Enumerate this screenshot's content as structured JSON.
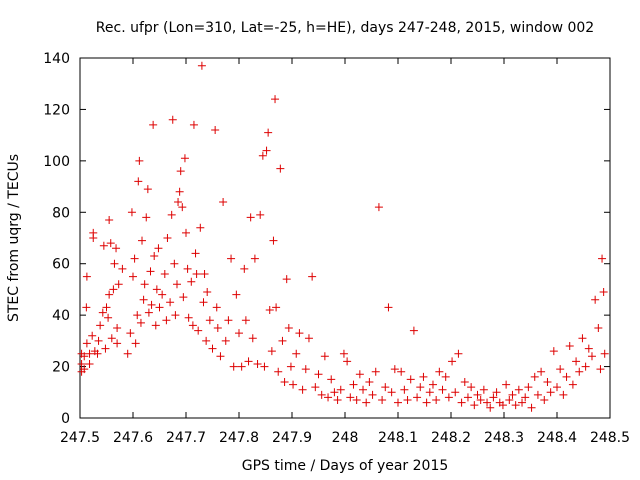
{
  "chart_data": {
    "type": "scatter",
    "title": "Rec. ufpr (Lon=310, Lat=-25, h=HE), days 247-248, 2015, window 002",
    "xlabel": "GPS time / Days of year 2015",
    "ylabel": "STEC from uqrg / TECUs",
    "xlim": [
      247.5,
      248.5
    ],
    "ylim": [
      0,
      140
    ],
    "x_ticks": [
      247.5,
      247.6,
      247.7,
      247.8,
      247.9,
      248.0,
      248.1,
      248.2,
      248.3,
      248.4,
      248.5
    ],
    "x_tick_labels": [
      "247.5",
      "247.6",
      "247.7",
      "247.8",
      "247.9",
      "248",
      "248.1",
      "248.2",
      "248.3",
      "248.4",
      "248.5"
    ],
    "y_ticks": [
      0,
      20,
      40,
      60,
      80,
      100,
      120,
      140
    ],
    "y_tick_labels": [
      "0",
      "20",
      "40",
      "60",
      "80",
      "100",
      "120",
      "140"
    ],
    "grid": false,
    "legend": "none",
    "marker": "plus",
    "color": "#dd0000",
    "points": [
      [
        247.503,
        18
      ],
      [
        247.503,
        21
      ],
      [
        247.503,
        25
      ],
      [
        247.508,
        19
      ],
      [
        247.508,
        24
      ],
      [
        247.512,
        43
      ],
      [
        247.513,
        29
      ],
      [
        247.513,
        55
      ],
      [
        247.518,
        21
      ],
      [
        247.518,
        25
      ],
      [
        247.523,
        32
      ],
      [
        247.525,
        72
      ],
      [
        247.525,
        70
      ],
      [
        247.528,
        26
      ],
      [
        247.533,
        25
      ],
      [
        247.535,
        30
      ],
      [
        247.538,
        36
      ],
      [
        247.543,
        41
      ],
      [
        247.545,
        67
      ],
      [
        247.548,
        27
      ],
      [
        247.55,
        43
      ],
      [
        247.553,
        39
      ],
      [
        247.555,
        77
      ],
      [
        247.555,
        48
      ],
      [
        247.558,
        68
      ],
      [
        247.56,
        31
      ],
      [
        247.563,
        50
      ],
      [
        247.565,
        60
      ],
      [
        247.568,
        66
      ],
      [
        247.57,
        35
      ],
      [
        247.57,
        29
      ],
      [
        247.573,
        52
      ],
      [
        247.58,
        58
      ],
      [
        247.59,
        25
      ],
      [
        247.595,
        33
      ],
      [
        247.598,
        80
      ],
      [
        247.6,
        55
      ],
      [
        247.603,
        62
      ],
      [
        247.605,
        29
      ],
      [
        247.608,
        40
      ],
      [
        247.61,
        92
      ],
      [
        247.612,
        100
      ],
      [
        247.615,
        37
      ],
      [
        247.617,
        69
      ],
      [
        247.62,
        46
      ],
      [
        247.622,
        52
      ],
      [
        247.625,
        78
      ],
      [
        247.628,
        89
      ],
      [
        247.63,
        41
      ],
      [
        247.633,
        57
      ],
      [
        247.635,
        44
      ],
      [
        247.638,
        114
      ],
      [
        247.64,
        63
      ],
      [
        247.643,
        36
      ],
      [
        247.645,
        50
      ],
      [
        247.648,
        66
      ],
      [
        247.65,
        43
      ],
      [
        247.655,
        48
      ],
      [
        247.66,
        56
      ],
      [
        247.663,
        38
      ],
      [
        247.665,
        70
      ],
      [
        247.67,
        45
      ],
      [
        247.673,
        79
      ],
      [
        247.675,
        116
      ],
      [
        247.678,
        60
      ],
      [
        247.68,
        40
      ],
      [
        247.683,
        52
      ],
      [
        247.685,
        84
      ],
      [
        247.688,
        88
      ],
      [
        247.69,
        96
      ],
      [
        247.693,
        82
      ],
      [
        247.695,
        47
      ],
      [
        247.698,
        101
      ],
      [
        247.7,
        72
      ],
      [
        247.703,
        58
      ],
      [
        247.705,
        39
      ],
      [
        247.71,
        53
      ],
      [
        247.713,
        36
      ],
      [
        247.715,
        114
      ],
      [
        247.718,
        64
      ],
      [
        247.72,
        56
      ],
      [
        247.723,
        34
      ],
      [
        247.727,
        74
      ],
      [
        247.73,
        137
      ],
      [
        247.733,
        45
      ],
      [
        247.735,
        56
      ],
      [
        247.738,
        30
      ],
      [
        247.74,
        49
      ],
      [
        247.745,
        38
      ],
      [
        247.75,
        27
      ],
      [
        247.755,
        112
      ],
      [
        247.758,
        43
      ],
      [
        247.76,
        35
      ],
      [
        247.765,
        24
      ],
      [
        247.77,
        84
      ],
      [
        247.775,
        30
      ],
      [
        247.78,
        38
      ],
      [
        247.785,
        62
      ],
      [
        247.79,
        20
      ],
      [
        247.795,
        48
      ],
      [
        247.8,
        33
      ],
      [
        247.805,
        20
      ],
      [
        247.81,
        58
      ],
      [
        247.813,
        38
      ],
      [
        247.818,
        22
      ],
      [
        247.822,
        78
      ],
      [
        247.826,
        31
      ],
      [
        247.83,
        62
      ],
      [
        247.835,
        21
      ],
      [
        247.84,
        79
      ],
      [
        247.845,
        102
      ],
      [
        247.848,
        20
      ],
      [
        247.852,
        104
      ],
      [
        247.855,
        111
      ],
      [
        247.858,
        42
      ],
      [
        247.862,
        26
      ],
      [
        247.865,
        69
      ],
      [
        247.868,
        124
      ],
      [
        247.87,
        43
      ],
      [
        247.874,
        18
      ],
      [
        247.878,
        97
      ],
      [
        247.882,
        30
      ],
      [
        247.886,
        14
      ],
      [
        247.89,
        54
      ],
      [
        247.894,
        35
      ],
      [
        247.898,
        20
      ],
      [
        247.902,
        13
      ],
      [
        247.908,
        25
      ],
      [
        247.914,
        33
      ],
      [
        247.92,
        11
      ],
      [
        247.926,
        19
      ],
      [
        247.932,
        31
      ],
      [
        247.938,
        55
      ],
      [
        247.944,
        12
      ],
      [
        247.95,
        17
      ],
      [
        247.956,
        9
      ],
      [
        247.962,
        24
      ],
      [
        247.968,
        8
      ],
      [
        247.974,
        15
      ],
      [
        247.98,
        10
      ],
      [
        247.986,
        7
      ],
      [
        247.992,
        11
      ],
      [
        247.998,
        25
      ],
      [
        248.004,
        22
      ],
      [
        248.01,
        8
      ],
      [
        248.016,
        13
      ],
      [
        248.022,
        7
      ],
      [
        248.028,
        17
      ],
      [
        248.034,
        11
      ],
      [
        248.04,
        6
      ],
      [
        248.046,
        14
      ],
      [
        248.052,
        9
      ],
      [
        248.058,
        18
      ],
      [
        248.064,
        82
      ],
      [
        248.07,
        7
      ],
      [
        248.076,
        12
      ],
      [
        248.082,
        43
      ],
      [
        248.088,
        10
      ],
      [
        248.094,
        19
      ],
      [
        248.1,
        6
      ],
      [
        248.106,
        18
      ],
      [
        248.112,
        11
      ],
      [
        248.118,
        7
      ],
      [
        248.124,
        15
      ],
      [
        248.13,
        34
      ],
      [
        248.136,
        8
      ],
      [
        248.142,
        12
      ],
      [
        248.148,
        16
      ],
      [
        248.154,
        6
      ],
      [
        248.16,
        10
      ],
      [
        248.166,
        13
      ],
      [
        248.172,
        7
      ],
      [
        248.178,
        18
      ],
      [
        248.184,
        11
      ],
      [
        248.19,
        16
      ],
      [
        248.196,
        8
      ],
      [
        248.202,
        22
      ],
      [
        248.208,
        10
      ],
      [
        248.214,
        25
      ],
      [
        248.22,
        6
      ],
      [
        248.226,
        14
      ],
      [
        248.232,
        8
      ],
      [
        248.238,
        12
      ],
      [
        248.244,
        5
      ],
      [
        248.25,
        9
      ],
      [
        248.256,
        7
      ],
      [
        248.262,
        11
      ],
      [
        248.268,
        6
      ],
      [
        248.274,
        4
      ],
      [
        248.28,
        8
      ],
      [
        248.286,
        10
      ],
      [
        248.292,
        6
      ],
      [
        248.298,
        5
      ],
      [
        248.304,
        13
      ],
      [
        248.31,
        7
      ],
      [
        248.316,
        9
      ],
      [
        248.322,
        5
      ],
      [
        248.328,
        11
      ],
      [
        248.334,
        6
      ],
      [
        248.34,
        8
      ],
      [
        248.346,
        12
      ],
      [
        248.352,
        4
      ],
      [
        248.358,
        16
      ],
      [
        248.364,
        9
      ],
      [
        248.37,
        18
      ],
      [
        248.376,
        7
      ],
      [
        248.382,
        14
      ],
      [
        248.388,
        10
      ],
      [
        248.394,
        26
      ],
      [
        248.4,
        12
      ],
      [
        248.406,
        19
      ],
      [
        248.412,
        9
      ],
      [
        248.418,
        16
      ],
      [
        248.424,
        28
      ],
      [
        248.43,
        13
      ],
      [
        248.436,
        22
      ],
      [
        248.442,
        18
      ],
      [
        248.448,
        31
      ],
      [
        248.454,
        20
      ],
      [
        248.46,
        27
      ],
      [
        248.466,
        24
      ],
      [
        248.472,
        46
      ],
      [
        248.478,
        35
      ],
      [
        248.482,
        19
      ],
      [
        248.485,
        62
      ],
      [
        248.488,
        49
      ],
      [
        248.49,
        25
      ]
    ]
  }
}
